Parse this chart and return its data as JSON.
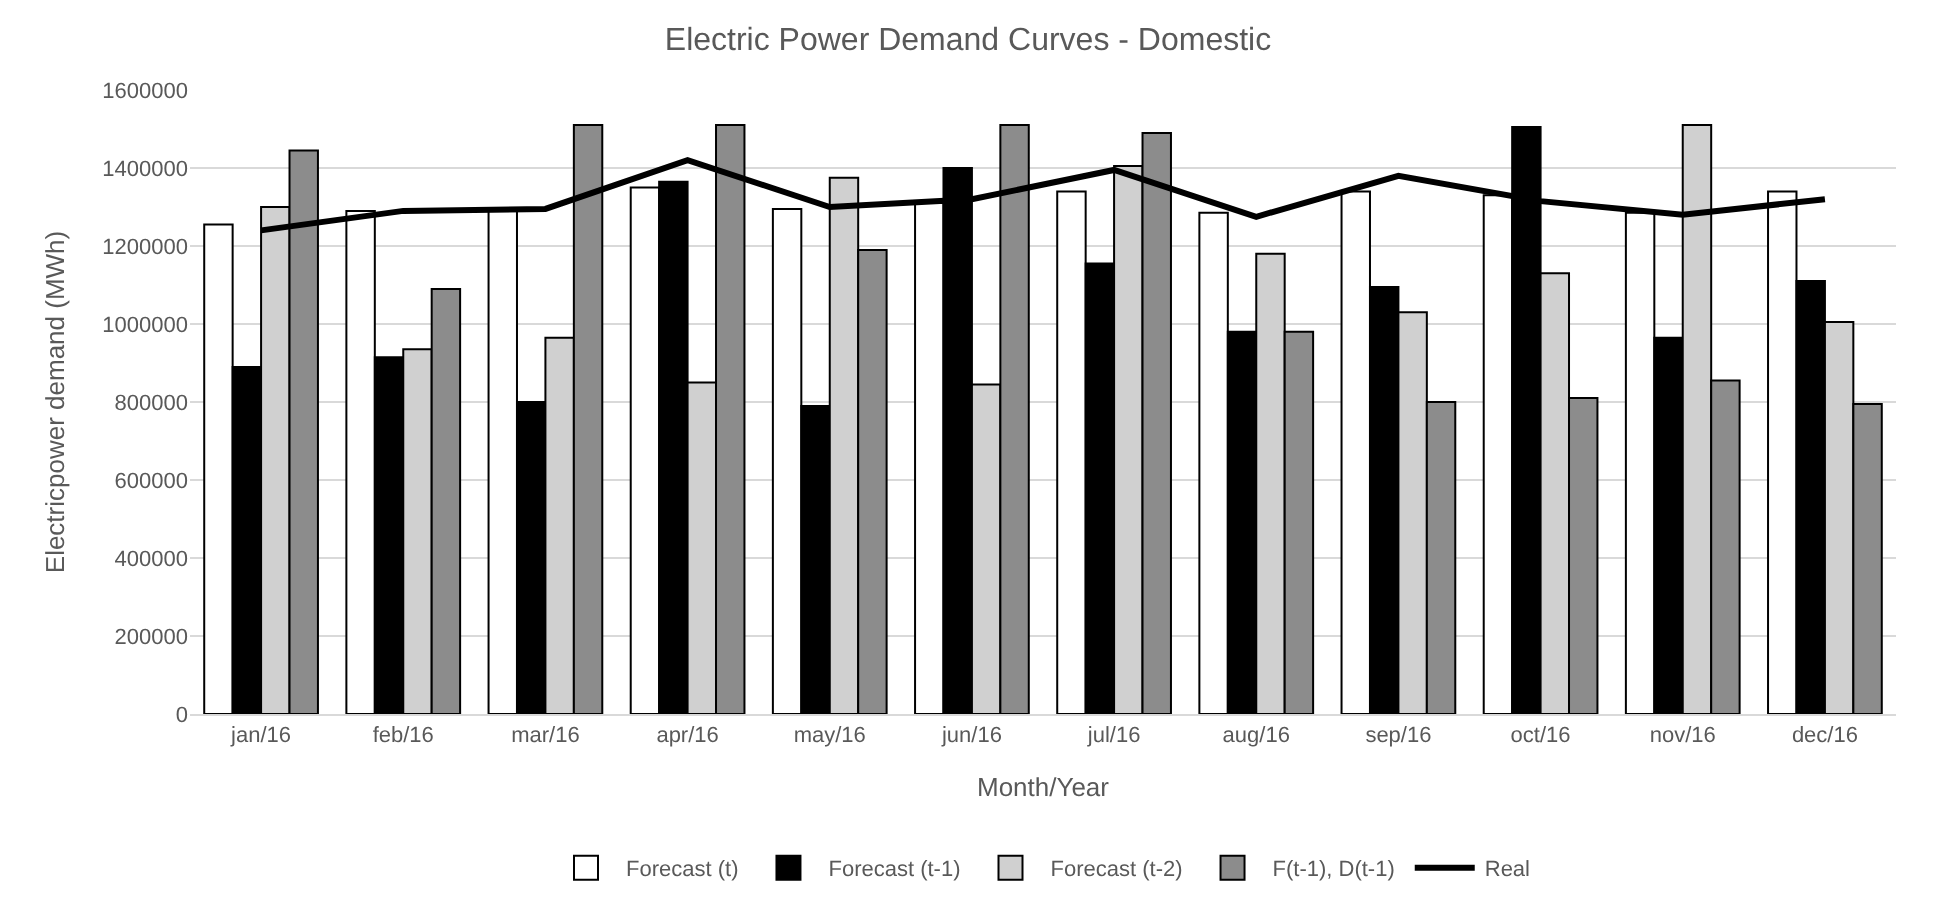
{
  "chart_data": {
    "type": "bar",
    "title": "Electric Power Demand Curves - Domestic",
    "xlabel": "Month/Year",
    "ylabel": "Electricpower demand (MWh)",
    "categories": [
      "jan/16",
      "feb/16",
      "mar/16",
      "apr/16",
      "may/16",
      "jun/16",
      "jul/16",
      "aug/16",
      "sep/16",
      "oct/16",
      "nov/16",
      "dec/16"
    ],
    "series": [
      {
        "name": "Forecast (t)",
        "color": "#ffffff",
        "values": [
          1255000,
          1290000,
          1290000,
          1350000,
          1295000,
          1310000,
          1340000,
          1285000,
          1340000,
          1330000,
          1285000,
          1340000
        ]
      },
      {
        "name": "Forecast (t-1)",
        "color": "#000000",
        "values": [
          890000,
          915000,
          800000,
          1365000,
          790000,
          1400000,
          1155000,
          980000,
          1095000,
          1505000,
          965000,
          1110000
        ]
      },
      {
        "name": "Forecast (t-2)",
        "color": "#d0d0d0",
        "values": [
          1300000,
          935000,
          965000,
          850000,
          1375000,
          845000,
          1405000,
          1180000,
          1030000,
          1130000,
          1510000,
          1005000
        ]
      },
      {
        "name": "F(t-1), D(t-1)",
        "color": "#8c8c8c",
        "values": [
          1445000,
          1090000,
          1510000,
          1510000,
          1190000,
          1510000,
          1490000,
          980000,
          800000,
          810000,
          855000,
          795000
        ]
      },
      {
        "name": "Real",
        "type": "line",
        "color": "#000000",
        "values": [
          1240000,
          1290000,
          1295000,
          1420000,
          1300000,
          1320000,
          1395000,
          1275000,
          1380000,
          1315000,
          1280000,
          1320000
        ]
      }
    ],
    "ylim": [
      0,
      1600000
    ],
    "yticks": [
      0,
      200000,
      400000,
      600000,
      800000,
      1000000,
      1200000,
      1400000,
      1600000
    ],
    "grid": "y",
    "legend": "bottom"
  }
}
